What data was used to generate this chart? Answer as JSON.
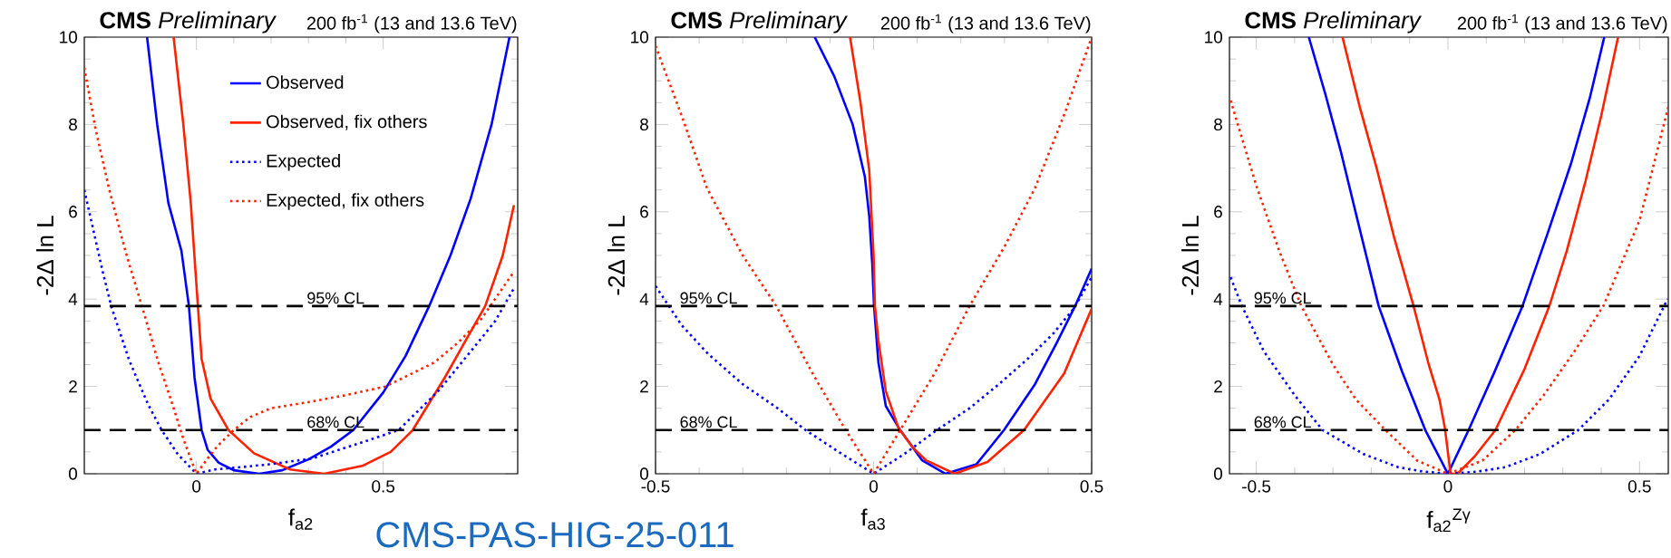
{
  "chart_data": [
    {
      "type": "line",
      "title": "**CMS** *Preliminary*",
      "subtitle": "200 fb$^{-1}$ (13 and 13.6 TeV)",
      "xlabel": "f$_{a2}$",
      "ylabel": "-2Δ ln L",
      "xlim": [
        -0.3,
        0.86
      ],
      "ylim": [
        0,
        10
      ],
      "xticks": [
        0,
        0.5
      ],
      "yticks": [
        0,
        2,
        4,
        6,
        8,
        10
      ],
      "legend": "top",
      "marker": "none",
      "ref_lines": [
        {
          "axis": "y",
          "value": 3.84,
          "label": "95% CL",
          "color": "#000000",
          "line_style": "dashed"
        },
        {
          "axis": "y",
          "value": 1,
          "label": "68% CL",
          "color": "#000000",
          "line_style": "dashed"
        }
      ],
      "annotations": [
        "CMS-PAS-HIG-25-011"
      ],
      "series": [
        {
          "name": "Observed",
          "color": "#0000ff",
          "line_style": "solid",
          "x": [
            -0.132,
            -0.105,
            -0.075,
            -0.04,
            -0.02,
            -0.005,
            0.014,
            0.03,
            0.06,
            0.1,
            0.168,
            0.23,
            0.3,
            0.36,
            0.42,
            0.5,
            0.56,
            0.623,
            0.68,
            0.734,
            0.79,
            0.838
          ],
          "values": [
            10,
            8,
            6.2,
            5.1,
            3.84,
            2.2,
            1.0,
            0.55,
            0.25,
            0.08,
            0,
            0.08,
            0.33,
            0.62,
            1.0,
            1.86,
            2.7,
            3.84,
            5.0,
            6.3,
            8.0,
            10
          ]
        },
        {
          "name": "Observed, fix others",
          "color": "#ff2200",
          "line_style": "solid",
          "x": [
            -0.061,
            -0.035,
            -0.015,
            0.004,
            0.014,
            0.038,
            0.086,
            0.154,
            0.25,
            0.342,
            0.444,
            0.52,
            0.579,
            0.666,
            0.773,
            0.82,
            0.85
          ],
          "values": [
            10,
            8,
            6.2,
            3.84,
            2.63,
            1.72,
            1.0,
            0.47,
            0.1,
            0,
            0.18,
            0.5,
            1.0,
            2.22,
            3.84,
            5.0,
            6.15
          ]
        },
        {
          "name": "Expected",
          "color": "#0000ff",
          "line_style": "dotted",
          "x": [
            -0.3,
            -0.25,
            -0.228,
            -0.18,
            -0.13,
            -0.093,
            -0.05,
            0,
            0.05,
            0.105,
            0.2,
            0.31,
            0.444,
            0.541,
            0.647,
            0.734,
            0.8,
            0.85
          ],
          "values": [
            6.5,
            4.6,
            3.84,
            2.6,
            1.6,
            1.0,
            0.45,
            0,
            0.1,
            0.14,
            0.22,
            0.35,
            0.72,
            1.0,
            1.89,
            2.8,
            3.5,
            4.25
          ]
        },
        {
          "name": "Expected, fix others",
          "color": "#ff2200",
          "line_style": "dotted",
          "x": [
            -0.3,
            -0.27,
            -0.233,
            -0.19,
            -0.146,
            -0.1,
            -0.069,
            -0.035,
            0,
            0.03,
            0.057,
            0.1,
            0.144,
            0.2,
            0.299,
            0.4,
            0.507,
            0.637,
            0.7,
            0.763,
            0.85
          ],
          "values": [
            9.3,
            7.9,
            6.5,
            5.1,
            3.84,
            2.5,
            1.72,
            0.8,
            0,
            0.35,
            0.64,
            1.0,
            1.3,
            1.5,
            1.64,
            1.8,
            2.0,
            2.55,
            3.0,
            3.55,
            4.63
          ]
        }
      ]
    },
    {
      "type": "line",
      "title": "**CMS** *Preliminary*",
      "subtitle": "200 fb$^{-1}$ (13 and 13.6 TeV)",
      "xlabel": "f$_{a3}$",
      "ylabel": "-2Δ ln L",
      "xlim": [
        -0.5,
        0.5
      ],
      "ylim": [
        0,
        10
      ],
      "xticks": [
        -0.5,
        0,
        0.5
      ],
      "yticks": [
        0,
        2,
        4,
        6,
        8,
        10
      ],
      "marker": "none",
      "ref_lines": [
        {
          "axis": "y",
          "value": 3.84,
          "label": "95% CL",
          "color": "#000000",
          "line_style": "dashed"
        },
        {
          "axis": "y",
          "value": 1,
          "label": "68% CL",
          "color": "#000000",
          "line_style": "dashed"
        }
      ],
      "series": [
        {
          "color": "#0000ff",
          "line_style": "solid",
          "x": [
            -0.135,
            -0.09,
            -0.048,
            -0.02,
            -0.01,
            -0.003,
            0.001,
            0.011,
            0.028,
            0.061,
            0.111,
            0.165,
            0.236,
            0.299,
            0.37,
            0.42,
            0.462,
            0.5
          ],
          "values": [
            10,
            9.1,
            8.0,
            6.8,
            5.9,
            4.8,
            3.84,
            2.55,
            1.55,
            1.0,
            0.31,
            0,
            0.22,
            1.0,
            2.05,
            3.0,
            3.84,
            4.7
          ]
        },
        {
          "color": "#ff2200",
          "line_style": "solid",
          "x": [
            -0.054,
            -0.03,
            -0.01,
            0,
            0.003,
            0.011,
            0.028,
            0.057,
            0.09,
            0.12,
            0.186,
            0.261,
            0.345,
            0.437,
            0.5
          ],
          "values": [
            10,
            8.5,
            6.95,
            5.0,
            3.84,
            3.05,
            1.89,
            1.05,
            0.6,
            0.31,
            0,
            0.27,
            1.0,
            2.3,
            3.78
          ]
        },
        {
          "color": "#0000ff",
          "line_style": "dotted",
          "x": [
            -0.5,
            -0.44,
            -0.38,
            -0.3,
            -0.22,
            -0.156,
            -0.08,
            0,
            0.07,
            0.145,
            0.22,
            0.287,
            0.35,
            0.412,
            0.46,
            0.5
          ],
          "values": [
            4.3,
            3.4,
            2.75,
            2.05,
            1.5,
            1.0,
            0.5,
            0,
            0.45,
            1.0,
            1.5,
            2.05,
            2.6,
            3.21,
            3.8,
            4.5
          ]
        },
        {
          "color": "#ff2200",
          "line_style": "dotted",
          "x": [
            -0.5,
            -0.44,
            -0.382,
            -0.3,
            -0.223,
            -0.14,
            -0.064,
            0,
            0.061,
            0.14,
            0.22,
            0.3,
            0.37,
            0.44,
            0.5
          ],
          "values": [
            9.8,
            8.2,
            6.54,
            5.0,
            3.84,
            2.3,
            1.0,
            0,
            1.0,
            2.3,
            3.84,
            5.2,
            6.54,
            8.3,
            10
          ]
        }
      ]
    },
    {
      "type": "line",
      "title": "**CMS** *Preliminary*",
      "subtitle": "200 fb$^{-1}$ (13 and 13.6 TeV)",
      "xlabel": "f$_{a2}$$^{Zγ}$",
      "ylabel": "-2Δ ln L",
      "xlim": [
        -0.57,
        0.575
      ],
      "ylim": [
        0,
        10
      ],
      "xticks": [
        -0.5,
        0,
        0.5
      ],
      "yticks": [
        0,
        2,
        4,
        6,
        8,
        10
      ],
      "marker": "none",
      "ref_lines": [
        {
          "axis": "y",
          "value": 3.84,
          "label": "95% CL",
          "color": "#000000",
          "line_style": "dashed"
        },
        {
          "axis": "y",
          "value": 1,
          "label": "68% CL",
          "color": "#000000",
          "line_style": "dashed"
        }
      ],
      "series": [
        {
          "color": "#0000ff",
          "line_style": "solid",
          "x": [
            -0.363,
            -0.32,
            -0.28,
            -0.23,
            -0.181,
            -0.12,
            -0.059,
            0,
            0.054,
            0.12,
            0.195,
            0.26,
            0.321,
            0.37,
            0.408
          ],
          "values": [
            10,
            8.7,
            7.4,
            5.6,
            3.85,
            2.35,
            1.0,
            0,
            1.0,
            2.3,
            3.85,
            5.5,
            7.1,
            8.6,
            10
          ]
        },
        {
          "color": "#ff2200",
          "line_style": "solid",
          "x": [
            -0.275,
            -0.23,
            -0.186,
            -0.14,
            -0.09,
            -0.05,
            -0.022,
            -0.008,
            0.007,
            0.025,
            0.07,
            0.124,
            0.2,
            0.265,
            0.31,
            0.359,
            0.4,
            0.444
          ],
          "values": [
            10,
            8.4,
            7.0,
            5.4,
            3.85,
            2.5,
            1.7,
            1.05,
            0,
            0,
            0.4,
            1.0,
            2.4,
            3.85,
            5.1,
            6.7,
            8.2,
            10
          ]
        },
        {
          "color": "#0000ff",
          "line_style": "dotted",
          "x": [
            -0.567,
            -0.538,
            -0.48,
            -0.4,
            -0.327,
            -0.22,
            -0.13,
            -0.064,
            0,
            0.077,
            0.15,
            0.24,
            0.34,
            0.42,
            0.5,
            0.573
          ],
          "values": [
            4.5,
            3.85,
            2.8,
            1.8,
            1.0,
            0.45,
            0.15,
            0.05,
            0,
            0.05,
            0.15,
            0.45,
            1.0,
            1.7,
            2.7,
            4.0
          ]
        },
        {
          "color": "#ff2200",
          "line_style": "dotted",
          "x": [
            -0.567,
            -0.5,
            -0.44,
            -0.383,
            -0.3,
            -0.24,
            -0.163,
            -0.08,
            0,
            0.09,
            0.176,
            0.25,
            0.33,
            0.406,
            0.5,
            0.575
          ],
          "values": [
            8.55,
            6.6,
            5.1,
            3.85,
            2.5,
            1.7,
            1.0,
            0.3,
            0,
            0.3,
            1.0,
            1.8,
            2.8,
            3.85,
            5.8,
            8.4
          ]
        }
      ]
    }
  ]
}
